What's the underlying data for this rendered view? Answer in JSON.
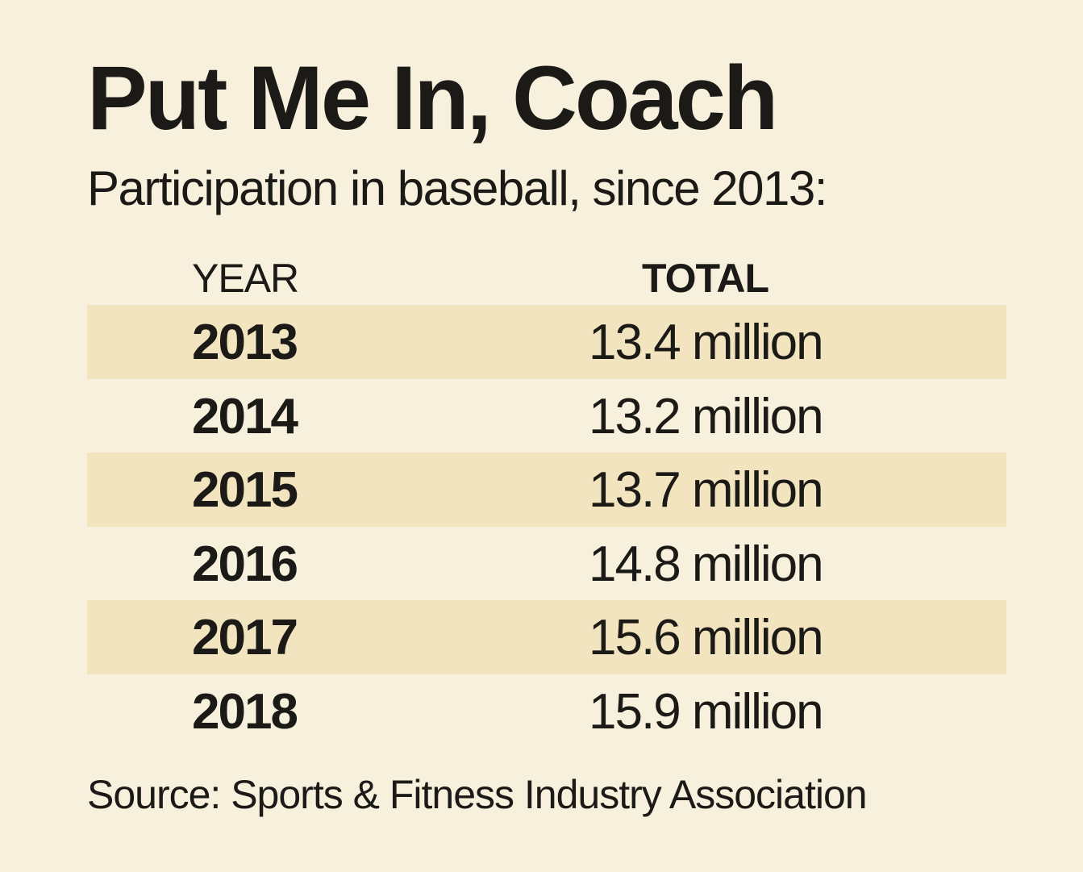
{
  "title": "Put Me In, Coach",
  "subtitle": "Participation in baseball, since 2013:",
  "source": "Source: Sports & Fitness Industry Association",
  "colors": {
    "background": "#f7f0dc",
    "row_shade": "#f2e4bf",
    "text": "#1c1a17"
  },
  "chart_data": {
    "type": "table",
    "title": "Put Me In, Coach",
    "subtitle": "Participation in baseball, since 2013:",
    "columns": [
      "YEAR",
      "TOTAL"
    ],
    "rows": [
      {
        "year": "2013",
        "total": "13.4 million"
      },
      {
        "year": "2014",
        "total": "13.2 million"
      },
      {
        "year": "2015",
        "total": "13.7 million"
      },
      {
        "year": "2016",
        "total": "14.8 million"
      },
      {
        "year": "2017",
        "total": "15.6 million"
      },
      {
        "year": "2018",
        "total": "15.9 million"
      }
    ],
    "values": [
      13.4,
      13.2,
      13.7,
      14.8,
      15.6,
      15.9
    ],
    "unit": "million",
    "source": "Source: Sports & Fitness Industry Association"
  }
}
